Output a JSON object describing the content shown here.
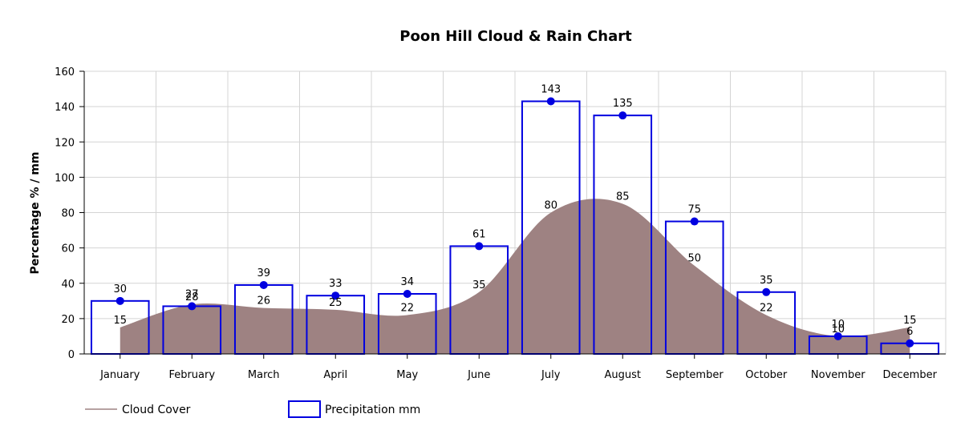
{
  "chart_data": {
    "type": "bar",
    "title": "Poon Hill Cloud & Rain Chart",
    "ylabel": "Percentage % / mm",
    "xlabel": "",
    "ylim": [
      0,
      160
    ],
    "yticks": [
      0,
      20,
      40,
      60,
      80,
      100,
      120,
      140,
      160
    ],
    "grid": true,
    "legend_placement": "bottom-left",
    "categories": [
      "January",
      "February",
      "March",
      "April",
      "May",
      "June",
      "July",
      "August",
      "September",
      "October",
      "November",
      "December"
    ],
    "series": [
      {
        "name": "Cloud Cover",
        "type": "area",
        "color": "#9e8282",
        "values": [
          15,
          28,
          26,
          25,
          22,
          35,
          80,
          85,
          50,
          22,
          10,
          15
        ]
      },
      {
        "name": "Precipitation mm",
        "type": "bar",
        "color": "#0000e0",
        "values": [
          30,
          27,
          39,
          33,
          34,
          61,
          143,
          135,
          75,
          35,
          10,
          6
        ]
      }
    ]
  }
}
